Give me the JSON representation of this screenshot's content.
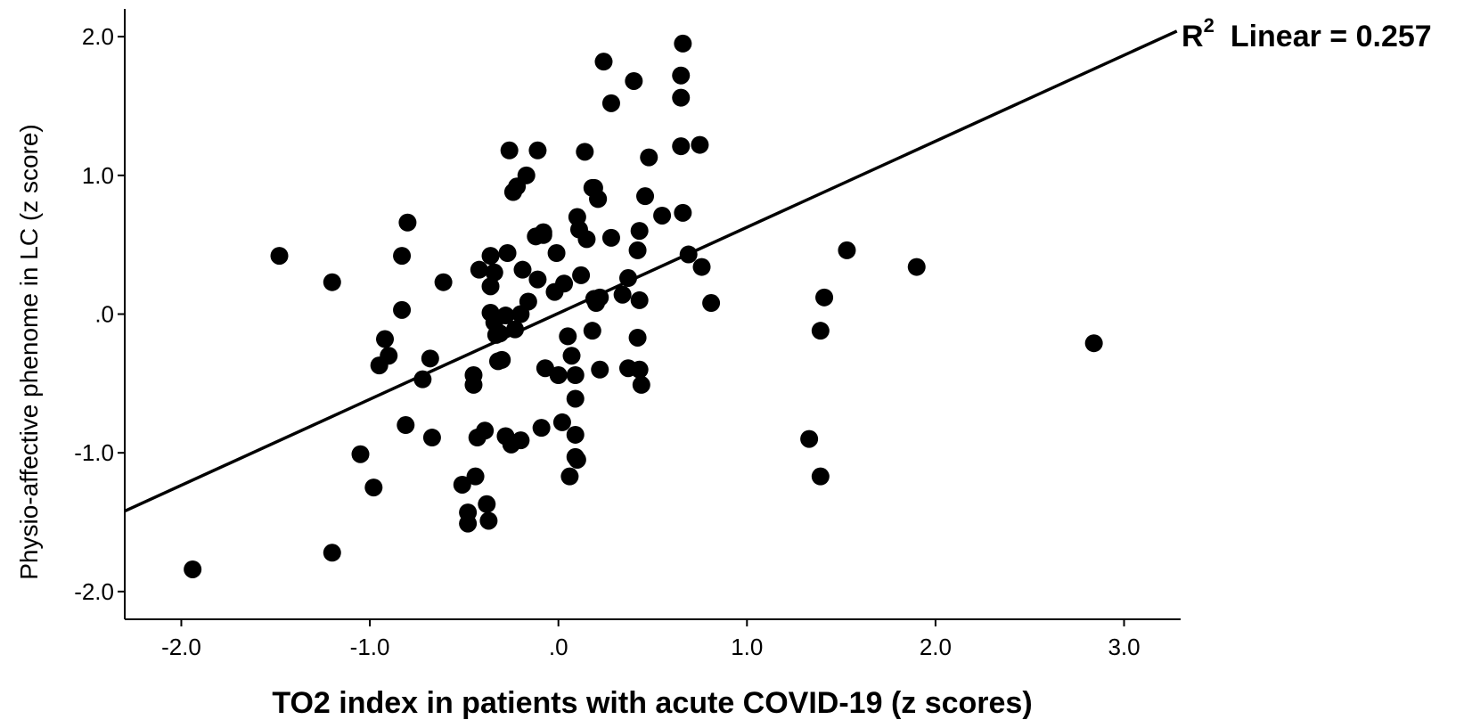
{
  "chart_data": {
    "type": "scatter",
    "xlabel": "TO2 index in patients with acute COVID-19 (z scores)",
    "ylabel": "Physio-affective phenome in LC (z score)",
    "xlim": [
      -2.3,
      3.3
    ],
    "ylim": [
      -2.2,
      2.2
    ],
    "x_ticks": [
      -2.0,
      -1.0,
      0.0,
      1.0,
      2.0,
      3.0
    ],
    "x_tick_labels": [
      "-2.0",
      "-1.0",
      ".0",
      "1.0",
      "2.0",
      "3.0"
    ],
    "y_ticks": [
      -2.0,
      -1.0,
      0.0,
      1.0,
      2.0
    ],
    "y_tick_labels": [
      "-2.0",
      "-1.0",
      ".0",
      "1.0",
      "2.0"
    ],
    "grid": false,
    "marker_color": "#000000",
    "fit_line": {
      "x": [
        -2.3,
        3.28
      ],
      "y": [
        -1.42,
        2.04
      ],
      "label_main": "R",
      "label_sup": "2",
      "label_rest": "Linear = 0.257"
    },
    "points": {
      "x": [
        -1.94,
        -1.48,
        -1.2,
        -1.2,
        -1.05,
        -0.98,
        -0.95,
        -0.92,
        -0.9,
        -0.83,
        -0.83,
        -0.81,
        -0.8,
        -0.72,
        -0.68,
        -0.67,
        -0.61,
        -0.51,
        -0.48,
        -0.48,
        -0.45,
        -0.45,
        -0.44,
        -0.43,
        -0.42,
        -0.39,
        -0.38,
        -0.37,
        -0.36,
        -0.36,
        -0.36,
        -0.34,
        -0.34,
        -0.33,
        -0.32,
        -0.31,
        -0.3,
        -0.28,
        -0.28,
        -0.27,
        -0.26,
        -0.25,
        -0.24,
        -0.23,
        -0.22,
        -0.2,
        -0.2,
        -0.19,
        -0.17,
        -0.16,
        -0.12,
        -0.11,
        -0.11,
        -0.09,
        -0.08,
        -0.08,
        -0.07,
        -0.02,
        -0.01,
        0.0,
        0.02,
        0.03,
        0.05,
        0.06,
        0.07,
        0.09,
        0.09,
        0.09,
        0.09,
        0.1,
        0.1,
        0.11,
        0.12,
        0.14,
        0.15,
        0.18,
        0.18,
        0.19,
        0.19,
        0.2,
        0.21,
        0.21,
        0.22,
        0.22,
        0.24,
        0.28,
        0.28,
        0.34,
        0.37,
        0.37,
        0.4,
        0.42,
        0.42,
        0.43,
        0.43,
        0.43,
        0.44,
        0.46,
        0.48,
        0.55,
        0.65,
        0.65,
        0.65,
        0.66,
        0.66,
        0.69,
        0.75,
        0.76,
        0.81,
        1.33,
        1.39,
        1.39,
        1.41,
        1.53,
        1.9,
        2.84
      ],
      "y": [
        -1.84,
        0.42,
        0.23,
        -1.72,
        -1.01,
        -1.25,
        -0.37,
        -0.18,
        -0.3,
        0.42,
        0.03,
        -0.8,
        0.66,
        -0.47,
        -0.32,
        -0.89,
        0.23,
        -1.23,
        -1.43,
        -1.51,
        -0.44,
        -0.51,
        -1.17,
        -0.89,
        0.32,
        -0.84,
        -1.37,
        -1.49,
        0.42,
        0.2,
        0.01,
        -0.06,
        0.3,
        -0.15,
        -0.34,
        -0.14,
        -0.33,
        -0.01,
        -0.88,
        0.44,
        1.18,
        -0.94,
        0.88,
        -0.11,
        0.92,
        0.0,
        -0.91,
        0.32,
        1.0,
        0.09,
        0.56,
        1.18,
        0.25,
        -0.82,
        0.59,
        0.57,
        -0.39,
        0.16,
        0.44,
        -0.44,
        -0.78,
        0.22,
        -0.16,
        -1.17,
        -0.3,
        -1.03,
        -0.61,
        -0.87,
        -0.44,
        -1.05,
        0.7,
        0.61,
        0.28,
        1.17,
        0.54,
        -0.12,
        0.91,
        0.91,
        0.11,
        0.08,
        0.83,
        0.83,
        0.12,
        -0.4,
        1.82,
        1.52,
        0.55,
        0.14,
        0.26,
        -0.39,
        1.68,
        -0.17,
        0.46,
        0.6,
        0.1,
        -0.4,
        -0.51,
        0.85,
        1.13,
        0.71,
        1.72,
        1.56,
        1.21,
        0.73,
        1.95,
        0.43,
        1.22,
        0.34,
        0.08,
        -0.9,
        -1.17,
        -0.12,
        0.12,
        0.46,
        0.34,
        -0.21
      ]
    }
  }
}
